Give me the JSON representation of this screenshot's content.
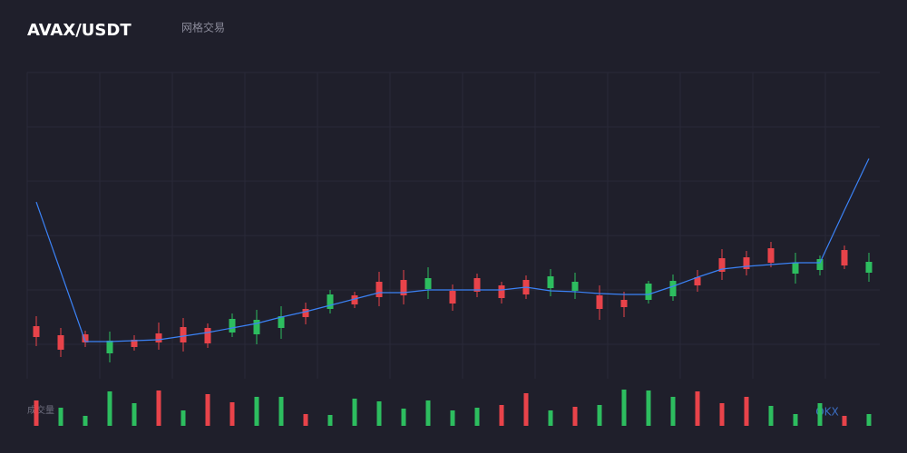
{
  "chart_data": {
    "type": "candlestick",
    "title": "AVAX/USDT",
    "subtitle": "网格交易",
    "watermark": "OKX",
    "ylim": [
      0,
      338
    ],
    "grid": true,
    "up_color": "#2dbd5f",
    "down_color": "#e8434a",
    "open": [
      58,
      48,
      49,
      28,
      43,
      50,
      57,
      56,
      51,
      49,
      56,
      77,
      77,
      92,
      107,
      109,
      99,
      97,
      111,
      103,
      109,
      100,
      97,
      92,
      87,
      87,
      91,
      112,
      133,
      134,
      144,
      116,
      120,
      142,
      117
    ],
    "high": [
      69,
      56,
      53,
      52,
      48,
      62,
      67,
      61,
      72,
      76,
      80,
      84,
      98,
      96,
      118,
      120,
      123,
      104,
      116,
      107,
      114,
      121,
      117,
      103,
      96,
      108,
      115,
      120,
      143,
      141,
      151,
      139,
      136,
      147,
      139
    ],
    "low": [
      36,
      24,
      35,
      18,
      31,
      32,
      30,
      34,
      46,
      38,
      44,
      60,
      72,
      78,
      80,
      82,
      88,
      75,
      90,
      83,
      88,
      91,
      88,
      65,
      68,
      83,
      86,
      96,
      109,
      114,
      123,
      105,
      114,
      121,
      107
    ],
    "close": [
      46,
      32,
      40,
      42,
      35,
      40,
      40,
      39,
      66,
      65,
      69,
      68,
      93,
      82,
      90,
      92,
      111,
      83,
      96,
      89,
      93,
      113,
      107,
      77,
      79,
      105,
      108,
      103,
      118,
      121,
      128,
      128,
      132,
      125,
      129
    ],
    "line": {
      "color": "#3b82f6",
      "values": [
        195,
        118,
        41,
        41,
        42,
        43,
        47,
        51,
        56,
        61,
        68,
        74,
        81,
        88,
        95,
        95,
        98,
        98,
        98,
        98,
        101,
        97,
        96,
        94,
        93,
        93,
        102,
        112,
        121,
        124,
        126,
        128,
        128,
        186,
        243
      ]
    },
    "volume": {
      "label": "成交量",
      "ylim": [
        0,
        45
      ],
      "values": [
        28,
        20,
        11,
        38,
        25,
        39,
        17,
        35,
        26,
        32,
        32,
        13,
        12,
        30,
        27,
        19,
        28,
        17,
        20,
        23,
        36,
        17,
        21,
        23,
        40,
        39,
        32,
        38,
        25,
        32,
        22,
        13,
        25,
        11,
        13
      ],
      "colors": [
        "#e8434a",
        "#2dbd5f",
        "#2dbd5f",
        "#2dbd5f",
        "#2dbd5f",
        "#e8434a",
        "#2dbd5f",
        "#e8434a",
        "#e8434a",
        "#2dbd5f",
        "#2dbd5f",
        "#e8434a",
        "#2dbd5f",
        "#2dbd5f",
        "#2dbd5f",
        "#2dbd5f",
        "#2dbd5f",
        "#2dbd5f",
        "#2dbd5f",
        "#e8434a",
        "#e8434a",
        "#2dbd5f",
        "#e8434a",
        "#2dbd5f",
        "#2dbd5f",
        "#2dbd5f",
        "#2dbd5f",
        "#e8434a",
        "#e8434a",
        "#e8434a",
        "#2dbd5f",
        "#2dbd5f",
        "#2dbd5f",
        "#e8434a",
        "#2dbd5f"
      ]
    }
  }
}
